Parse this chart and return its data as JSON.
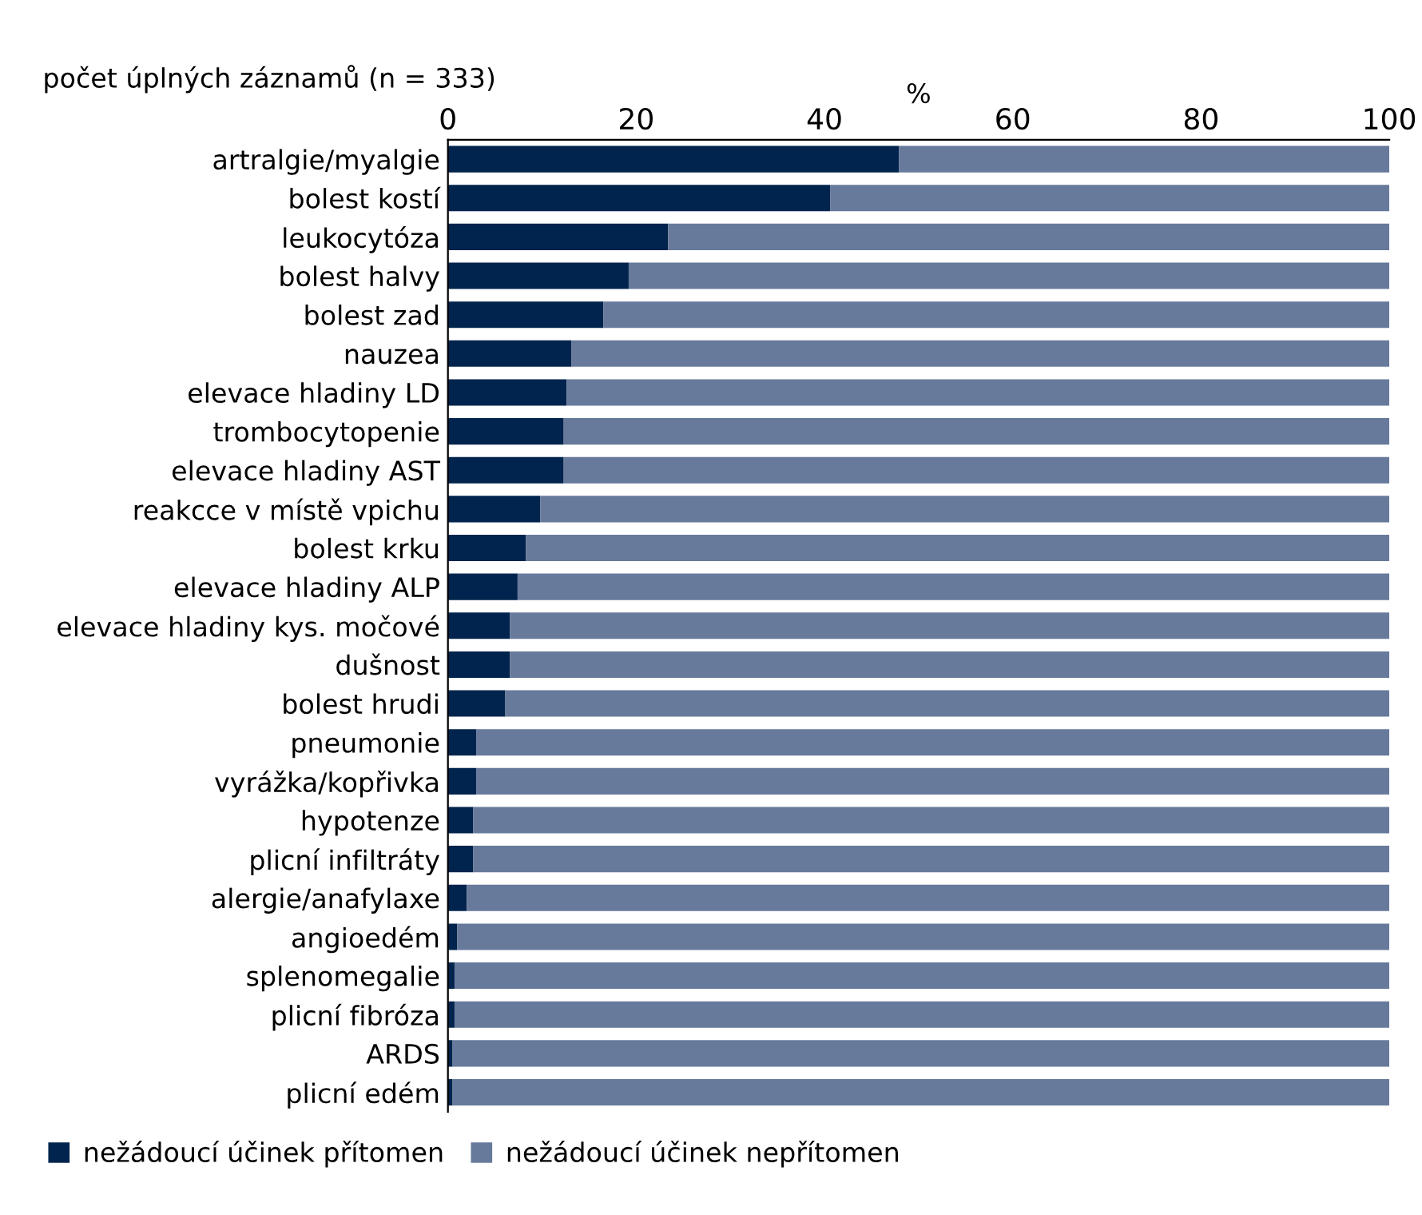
{
  "chart_data": {
    "type": "bar",
    "orientation": "horizontal",
    "stacked": true,
    "title": "počet úplných záznamů (n = 333)",
    "xlabel": "%",
    "categories": [
      "artralgie/myalgie",
      "bolest kostí",
      "leukocytóza",
      "bolest halvy",
      "bolest zad",
      "nauzea",
      "elevace hladiny LD",
      "trombocytopenie",
      "elevace hladiny AST",
      "reakcce v místě vpichu",
      "bolest krku",
      "elevace hladiny ALP",
      "elevace hladiny kys. močové",
      "dušnost",
      "bolest hrudi",
      "pneumonie",
      "vyrážka/kopřivka",
      "hypotenze",
      "plicní infiltráty",
      "alergie/anafylaxe",
      "angioedém",
      "splenomegalie",
      "plicní fibróza",
      "ARDS",
      "plicní edém"
    ],
    "series": [
      {
        "name": "nežádoucí účinek přítomen",
        "color": "#00244d",
        "values": [
          47.9,
          40.6,
          23.4,
          19.2,
          16.5,
          13.1,
          12.6,
          12.3,
          12.3,
          9.8,
          8.3,
          7.4,
          6.6,
          6.6,
          6.1,
          3.0,
          3.0,
          2.7,
          2.7,
          2.0,
          1.0,
          0.7,
          0.7,
          0.5,
          0.5
        ]
      },
      {
        "name": "nežádoucí účinek nepřítomen",
        "color": "#677a9b",
        "values": [
          52.1,
          59.4,
          76.6,
          80.8,
          83.5,
          86.9,
          87.4,
          87.7,
          87.7,
          90.2,
          91.7,
          92.6,
          93.4,
          93.4,
          93.9,
          97.0,
          97.0,
          97.3,
          97.3,
          98.0,
          99.0,
          99.3,
          99.3,
          99.5,
          99.5
        ]
      }
    ],
    "xlim": [
      0,
      100
    ],
    "xticks": [
      0,
      20,
      40,
      60,
      80,
      100
    ],
    "grid": false,
    "legend": "bottom"
  }
}
